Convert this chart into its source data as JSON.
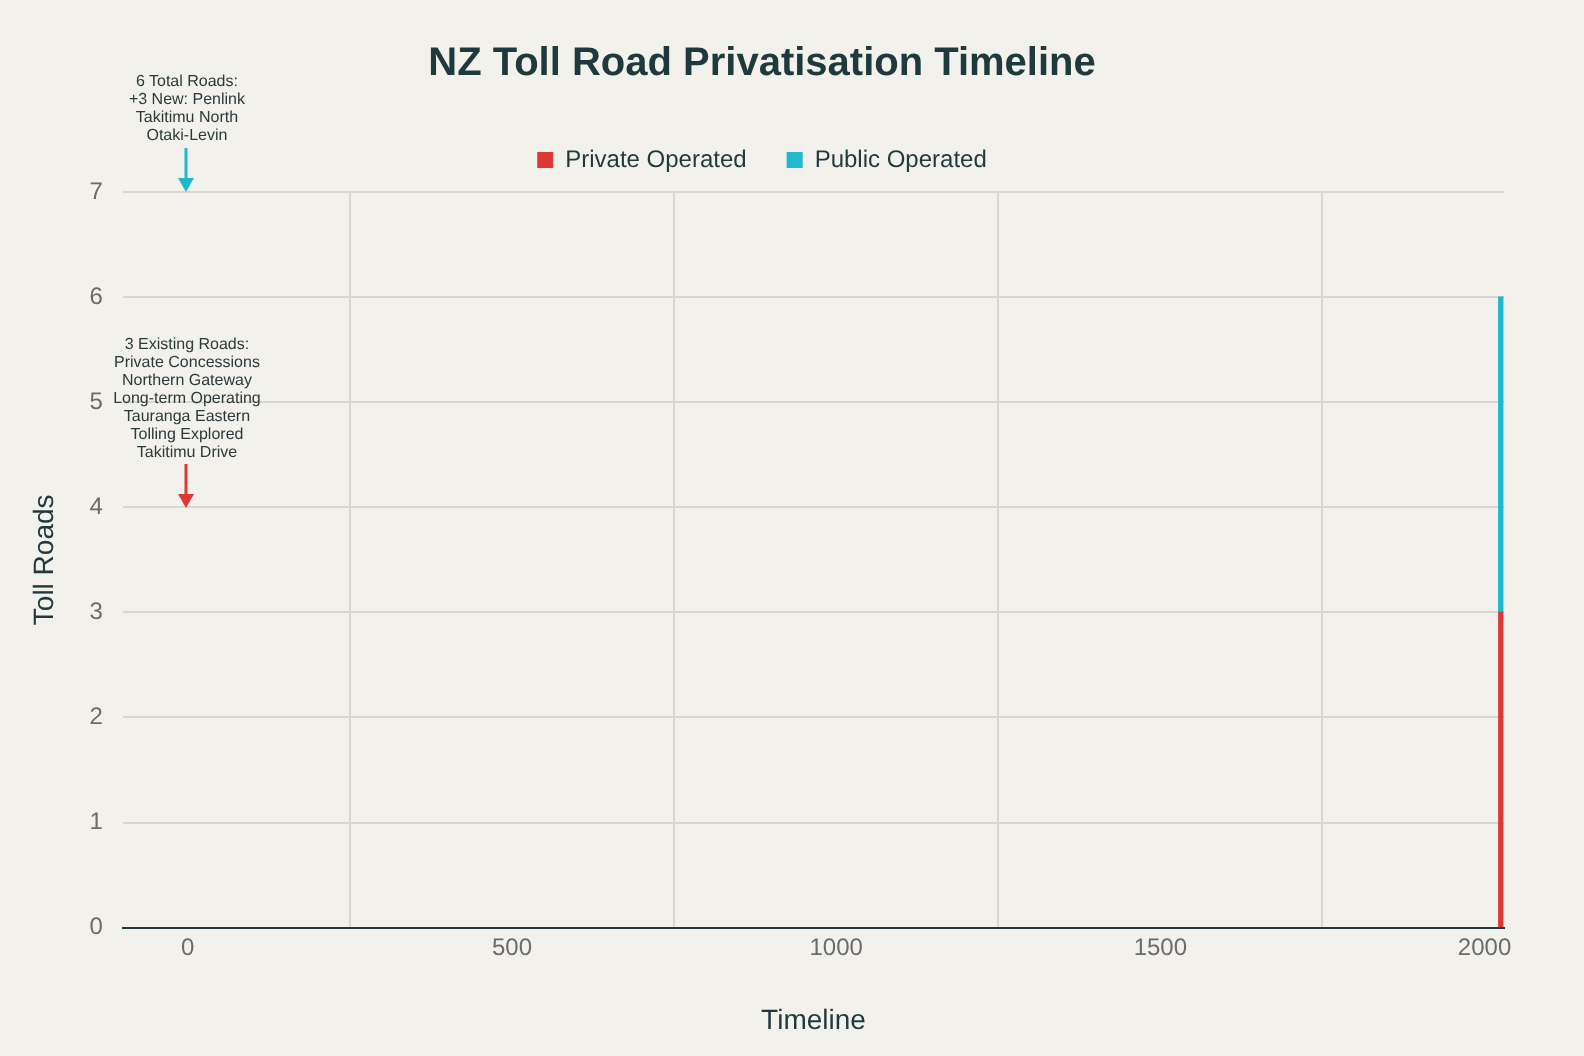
{
  "chart_data": {
    "type": "bar",
    "title": "NZ Toll Road Privatisation Timeline",
    "xlabel": "Timeline",
    "ylabel": "Toll Roads",
    "x": [
      2025
    ],
    "stacked": true,
    "series": [
      {
        "name": "Private Operated",
        "color": "#db3a34",
        "values": [
          3
        ]
      },
      {
        "name": "Public Operated",
        "color": "#1fb8cd",
        "values": [
          3
        ]
      }
    ],
    "xlim": [
      -100,
      2030
    ],
    "xticks": [
      0,
      500,
      1000,
      1500,
      2000
    ],
    "ylim": [
      0,
      7
    ],
    "yticks": [
      0,
      1,
      2,
      3,
      4,
      5,
      6,
      7
    ],
    "grid": true,
    "legend": "top",
    "annotations": [
      "3 Existing Roads:\nPrivate Concessions\nNorthern Gateway\nLong-term Operating\nTauranga Eastern\nTolling Explored\nTakitimu Drive",
      "6 Total Roads:\n+3 New: Penlink\nTakitimu North\nOtaki-Levin"
    ]
  }
}
